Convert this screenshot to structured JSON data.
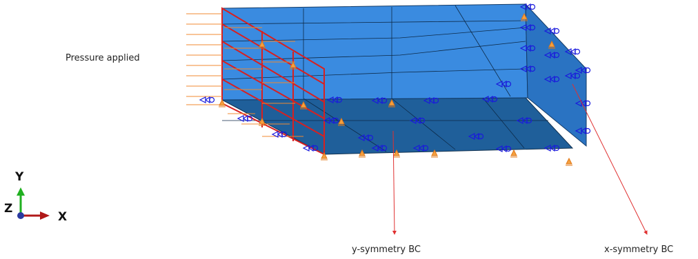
{
  "annotations": {
    "pressure": "Pressure applied",
    "y_symmetry": "y-symmetry BC",
    "x_symmetry": "x-symmetry BC"
  },
  "triad": {
    "y": "Y",
    "z": "Z",
    "x": "X"
  }
}
